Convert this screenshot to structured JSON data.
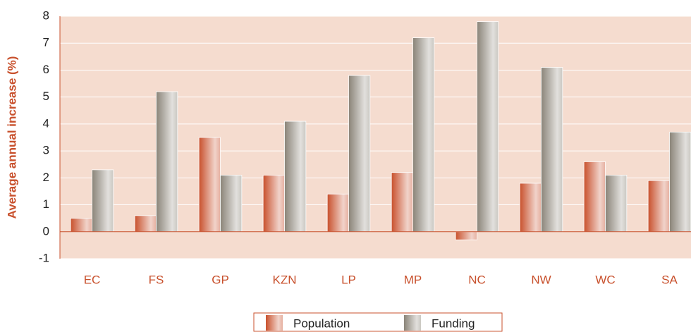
{
  "chart_data": {
    "type": "bar",
    "y_label": "Average annual increase (%)",
    "categories": [
      "EC",
      "FS",
      "GP",
      "KZN",
      "LP",
      "MP",
      "NC",
      "NW",
      "WC",
      "SA"
    ],
    "series": [
      {
        "name": "Population",
        "color": "#c8502c",
        "values": [
          0.5,
          0.6,
          3.5,
          2.1,
          1.4,
          2.2,
          -0.3,
          1.8,
          2.6,
          1.9
        ]
      },
      {
        "name": "Funding",
        "color": "#8a8478",
        "values": [
          2.3,
          5.2,
          2.1,
          4.1,
          5.8,
          7.2,
          7.8,
          6.1,
          2.1,
          3.7
        ]
      }
    ],
    "ylim": [
      -1,
      8
    ],
    "yticks": [
      -1,
      0,
      1,
      2,
      3,
      4,
      5,
      6,
      7,
      8
    ],
    "grid": true
  }
}
